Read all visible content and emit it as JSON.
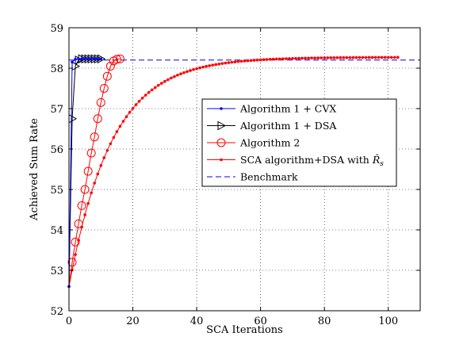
{
  "chart_data": {
    "type": "line",
    "xlabel": "SCA Iterations",
    "ylabel": "Achieved Sum Rate",
    "xlim": [
      0,
      110
    ],
    "ylim": [
      52,
      59
    ],
    "xticks": [
      0,
      20,
      40,
      60,
      80,
      100
    ],
    "yticks": [
      52,
      53,
      54,
      55,
      56,
      57,
      58,
      59
    ],
    "grid": true,
    "legend_position": "center-right",
    "series": [
      {
        "name": "Algorithm 1 + CVX",
        "color": "#0000ff",
        "marker": "dot",
        "x": [
          0,
          1,
          2,
          3,
          4,
          5,
          6,
          7,
          8,
          9,
          10
        ],
        "y": [
          52.6,
          58.15,
          58.22,
          58.23,
          58.23,
          58.23,
          58.23,
          58.23,
          58.23,
          58.23,
          58.23
        ]
      },
      {
        "name": "Algorithm 1 + DSA",
        "color": "#000000",
        "marker": "triangle-right",
        "x": [
          0,
          1,
          2,
          3,
          4,
          5,
          6,
          7,
          8,
          9,
          10
        ],
        "y": [
          52.6,
          56.75,
          58.05,
          58.2,
          58.23,
          58.23,
          58.23,
          58.23,
          58.23,
          58.23,
          58.23
        ]
      },
      {
        "name": "Algorithm 2",
        "color": "#ff0000",
        "marker": "circle",
        "x": [
          0,
          1,
          2,
          3,
          4,
          5,
          6,
          7,
          8,
          9,
          10,
          11,
          12,
          13,
          14,
          15,
          16
        ],
        "y": [
          52.6,
          53.2,
          53.7,
          54.15,
          54.6,
          55.0,
          55.45,
          55.9,
          56.3,
          56.75,
          57.15,
          57.5,
          57.8,
          58.05,
          58.18,
          58.22,
          58.23
        ]
      },
      {
        "name": "SCA algorithm+DSA with ",
        "name_math": "R̂",
        "name_sub": "s",
        "color": "#ff0000",
        "marker": "dot",
        "x_start": 0,
        "x_end": 103,
        "model": "saturating",
        "y0": 52.6,
        "y_final": 58.27,
        "rate": 0.075,
        "note_curve": "y = y_final - (y_final - y0) * exp(-rate * x)"
      },
      {
        "name": "Benchmark",
        "color": "#0000ff",
        "style": "dashed",
        "x": [
          0,
          110
        ],
        "y": [
          58.2,
          58.2
        ]
      }
    ]
  }
}
